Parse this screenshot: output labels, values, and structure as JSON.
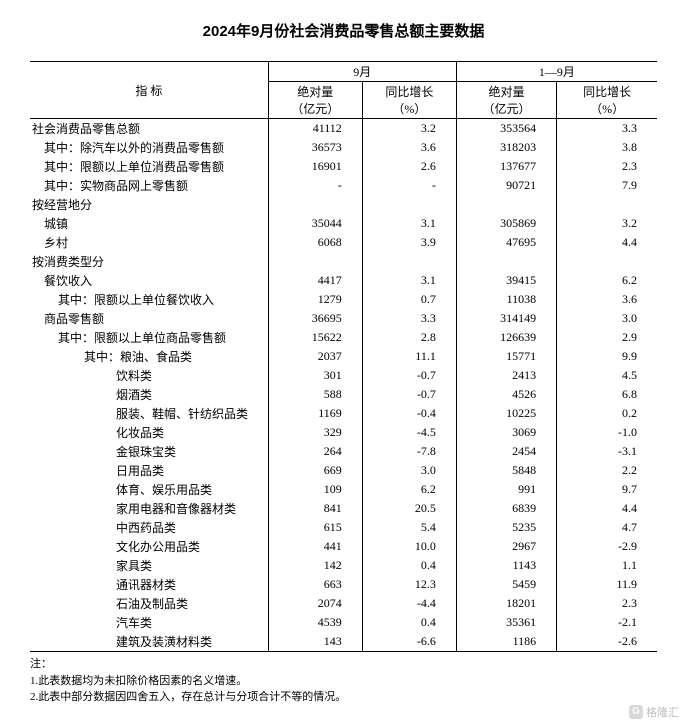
{
  "title": "2024年9月份社会消费品零售总额主要数据",
  "header": {
    "indicator": "指 标",
    "period1": "9月",
    "period2": "1—9月",
    "abs": "绝对量\n（亿元）",
    "yoy": "同比增长\n（%）"
  },
  "rows": [
    {
      "label": "社会消费品零售总额",
      "indent": 0,
      "v1": "41112",
      "g1": "3.2",
      "v2": "353564",
      "g2": "3.3"
    },
    {
      "label": "其中：除汽车以外的消费品零售额",
      "indent": 1,
      "v1": "36573",
      "g1": "3.6",
      "v2": "318203",
      "g2": "3.8"
    },
    {
      "label": "其中：限额以上单位消费品零售额",
      "indent": 1,
      "v1": "16901",
      "g1": "2.6",
      "v2": "137677",
      "g2": "2.3"
    },
    {
      "label": "其中：实物商品网上零售额",
      "indent": 1,
      "v1": "-",
      "g1": "-",
      "v2": "90721",
      "g2": "7.9"
    },
    {
      "label": "按经营地分",
      "indent": 0,
      "v1": "",
      "g1": "",
      "v2": "",
      "g2": ""
    },
    {
      "label": "城镇",
      "indent": 1,
      "v1": "35044",
      "g1": "3.1",
      "v2": "305869",
      "g2": "3.2"
    },
    {
      "label": "乡村",
      "indent": 1,
      "v1": "6068",
      "g1": "3.9",
      "v2": "47695",
      "g2": "4.4"
    },
    {
      "label": "按消费类型分",
      "indent": 0,
      "v1": "",
      "g1": "",
      "v2": "",
      "g2": ""
    },
    {
      "label": "餐饮收入",
      "indent": 1,
      "v1": "4417",
      "g1": "3.1",
      "v2": "39415",
      "g2": "6.2"
    },
    {
      "label": "其中：限额以上单位餐饮收入",
      "indent": 2,
      "v1": "1279",
      "g1": "0.7",
      "v2": "11038",
      "g2": "3.6"
    },
    {
      "label": "商品零售额",
      "indent": 1,
      "v1": "36695",
      "g1": "3.3",
      "v2": "314149",
      "g2": "3.0"
    },
    {
      "label": "其中：限额以上单位商品零售额",
      "indent": 2,
      "v1": "15622",
      "g1": "2.8",
      "v2": "126639",
      "g2": "2.9"
    },
    {
      "label": "其中：粮油、食品类",
      "indent": 4,
      "v1": "2037",
      "g1": "11.1",
      "v2": "15771",
      "g2": "9.9"
    },
    {
      "label": "饮料类",
      "indent": 5,
      "v1": "301",
      "g1": "-0.7",
      "v2": "2413",
      "g2": "4.5"
    },
    {
      "label": "烟酒类",
      "indent": 5,
      "v1": "588",
      "g1": "-0.7",
      "v2": "4526",
      "g2": "6.8"
    },
    {
      "label": "服装、鞋帽、针纺织品类",
      "indent": 5,
      "v1": "1169",
      "g1": "-0.4",
      "v2": "10225",
      "g2": "0.2"
    },
    {
      "label": "化妆品类",
      "indent": 5,
      "v1": "329",
      "g1": "-4.5",
      "v2": "3069",
      "g2": "-1.0"
    },
    {
      "label": "金银珠宝类",
      "indent": 5,
      "v1": "264",
      "g1": "-7.8",
      "v2": "2454",
      "g2": "-3.1"
    },
    {
      "label": "日用品类",
      "indent": 5,
      "v1": "669",
      "g1": "3.0",
      "v2": "5848",
      "g2": "2.2"
    },
    {
      "label": "体育、娱乐用品类",
      "indent": 5,
      "v1": "109",
      "g1": "6.2",
      "v2": "991",
      "g2": "9.7"
    },
    {
      "label": "家用电器和音像器材类",
      "indent": 5,
      "v1": "841",
      "g1": "20.5",
      "v2": "6839",
      "g2": "4.4"
    },
    {
      "label": "中西药品类",
      "indent": 5,
      "v1": "615",
      "g1": "5.4",
      "v2": "5235",
      "g2": "4.7"
    },
    {
      "label": "文化办公用品类",
      "indent": 5,
      "v1": "441",
      "g1": "10.0",
      "v2": "2967",
      "g2": "-2.9"
    },
    {
      "label": "家具类",
      "indent": 5,
      "v1": "142",
      "g1": "0.4",
      "v2": "1143",
      "g2": "1.1"
    },
    {
      "label": "通讯器材类",
      "indent": 5,
      "v1": "663",
      "g1": "12.3",
      "v2": "5459",
      "g2": "11.9"
    },
    {
      "label": "石油及制品类",
      "indent": 5,
      "v1": "2074",
      "g1": "-4.4",
      "v2": "18201",
      "g2": "2.3"
    },
    {
      "label": "汽车类",
      "indent": 5,
      "v1": "4539",
      "g1": "0.4",
      "v2": "35361",
      "g2": "-2.1"
    },
    {
      "label": "建筑及装潢材料类",
      "indent": 5,
      "v1": "143",
      "g1": "-6.6",
      "v2": "1186",
      "g2": "-2.6"
    }
  ],
  "notes": {
    "heading": "注：",
    "n1": "1.此表数据均为未扣除价格因素的名义增速。",
    "n2": "2.此表中部分数据因四舍五入，存在总计与分项合计不等的情况。"
  },
  "watermark": "格隆汇"
}
